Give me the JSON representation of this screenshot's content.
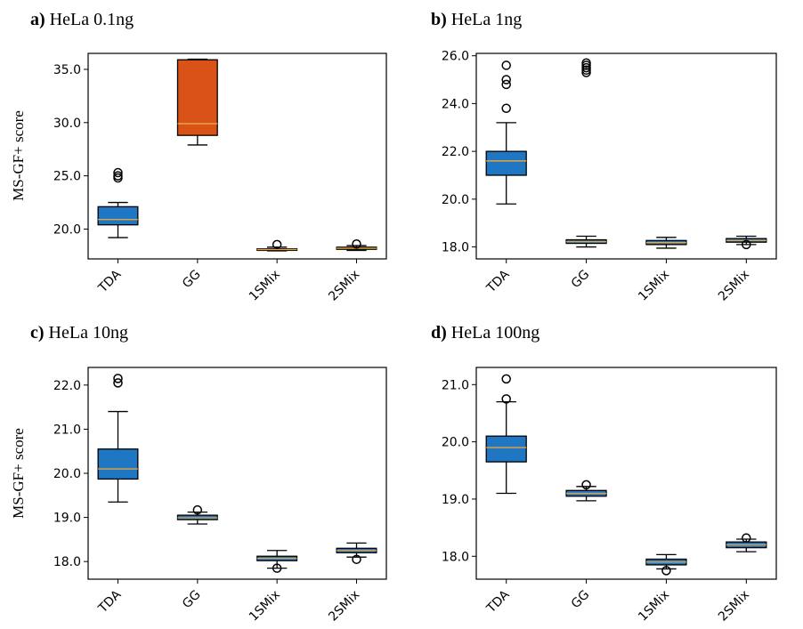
{
  "chart_data": [
    {
      "type": "box",
      "panel": "a)",
      "title": "HeLa 0.1ng",
      "ylabel": "MS-GF+ score",
      "categories": [
        "TDA",
        "GG",
        "1SMix",
        "2SMix"
      ],
      "ylim": [
        17.2,
        36.5
      ],
      "yticks": [
        20.0,
        25.0,
        30.0,
        35.0
      ],
      "boxes": [
        {
          "whislo": 19.2,
          "q1": 20.4,
          "med": 20.9,
          "q3": 22.1,
          "whishi": 22.5,
          "fliers": [
            24.8,
            25.0,
            25.3
          ],
          "color": "#1f77c4"
        },
        {
          "whislo": 27.9,
          "q1": 28.8,
          "med": 29.9,
          "q3": 35.9,
          "whishi": 35.95,
          "fliers": [],
          "color": "#d95319"
        },
        {
          "whislo": 17.95,
          "q1": 18.0,
          "med": 18.08,
          "q3": 18.15,
          "whishi": 18.3,
          "fliers": [
            18.55
          ],
          "color": "#1f77c4"
        },
        {
          "whislo": 18.0,
          "q1": 18.1,
          "med": 18.2,
          "q3": 18.3,
          "whishi": 18.45,
          "fliers": [
            18.6
          ],
          "color": "#1f77c4"
        }
      ]
    },
    {
      "type": "box",
      "panel": "b)",
      "title": "HeLa 1ng",
      "ylabel": "",
      "categories": [
        "TDA",
        "GG",
        "1SMix",
        "2SMix"
      ],
      "ylim": [
        17.5,
        26.1
      ],
      "yticks": [
        18.0,
        20.0,
        22.0,
        24.0,
        26.0
      ],
      "boxes": [
        {
          "whislo": 19.8,
          "q1": 21.0,
          "med": 21.6,
          "q3": 22.0,
          "whishi": 23.2,
          "fliers": [
            23.8,
            24.8,
            25.0,
            25.6
          ],
          "color": "#1f77c4"
        },
        {
          "whislo": 18.0,
          "q1": 18.15,
          "med": 18.22,
          "q3": 18.3,
          "whishi": 18.45,
          "fliers": [
            25.3,
            25.4,
            25.5,
            25.6,
            25.7
          ],
          "color": "#1f77c4"
        },
        {
          "whislo": 17.95,
          "q1": 18.1,
          "med": 18.18,
          "q3": 18.27,
          "whishi": 18.4,
          "fliers": [],
          "color": "#1f77c4"
        },
        {
          "whislo": 18.1,
          "q1": 18.2,
          "med": 18.27,
          "q3": 18.35,
          "whishi": 18.45,
          "fliers": [
            18.1
          ],
          "color": "#1f77c4"
        }
      ]
    },
    {
      "type": "box",
      "panel": "c)",
      "title": "HeLa 10ng",
      "ylabel": "MS-GF+ score",
      "categories": [
        "TDA",
        "GG",
        "1SMix",
        "2SMix"
      ],
      "ylim": [
        17.6,
        22.4
      ],
      "yticks": [
        18.0,
        19.0,
        20.0,
        21.0,
        22.0
      ],
      "boxes": [
        {
          "whislo": 19.35,
          "q1": 19.87,
          "med": 20.1,
          "q3": 20.55,
          "whishi": 21.4,
          "fliers": [
            22.05,
            22.15
          ],
          "color": "#1f77c4"
        },
        {
          "whislo": 18.85,
          "q1": 18.95,
          "med": 18.99,
          "q3": 19.05,
          "whishi": 19.12,
          "fliers": [
            19.17
          ],
          "color": "#1f77c4"
        },
        {
          "whislo": 17.85,
          "q1": 18.02,
          "med": 18.07,
          "q3": 18.12,
          "whishi": 18.25,
          "fliers": [
            17.85
          ],
          "color": "#1f77c4"
        },
        {
          "whislo": 18.1,
          "q1": 18.2,
          "med": 18.25,
          "q3": 18.3,
          "whishi": 18.42,
          "fliers": [
            18.05
          ],
          "color": "#1f77c4"
        }
      ]
    },
    {
      "type": "box",
      "panel": "d)",
      "title": "HeLa 100ng",
      "ylabel": "",
      "categories": [
        "TDA",
        "GG",
        "1SMix",
        "2SMix"
      ],
      "ylim": [
        17.6,
        21.3
      ],
      "yticks": [
        18.0,
        19.0,
        20.0,
        21.0
      ],
      "boxes": [
        {
          "whislo": 19.1,
          "q1": 19.65,
          "med": 19.9,
          "q3": 20.1,
          "whishi": 20.7,
          "fliers": [
            20.75,
            21.1
          ],
          "color": "#1f77c4"
        },
        {
          "whislo": 18.97,
          "q1": 19.05,
          "med": 19.1,
          "q3": 19.15,
          "whishi": 19.22,
          "fliers": [
            19.25
          ],
          "color": "#1f77c4"
        },
        {
          "whislo": 17.78,
          "q1": 17.85,
          "med": 17.9,
          "q3": 17.95,
          "whishi": 18.03,
          "fliers": [
            17.75
          ],
          "color": "#1f77c4"
        },
        {
          "whislo": 18.08,
          "q1": 18.15,
          "med": 18.2,
          "q3": 18.25,
          "whishi": 18.3,
          "fliers": [
            18.32
          ],
          "color": "#1f77c4"
        }
      ]
    }
  ],
  "style": {
    "median_color": "#e8a33d",
    "edge_color": "#000000"
  }
}
